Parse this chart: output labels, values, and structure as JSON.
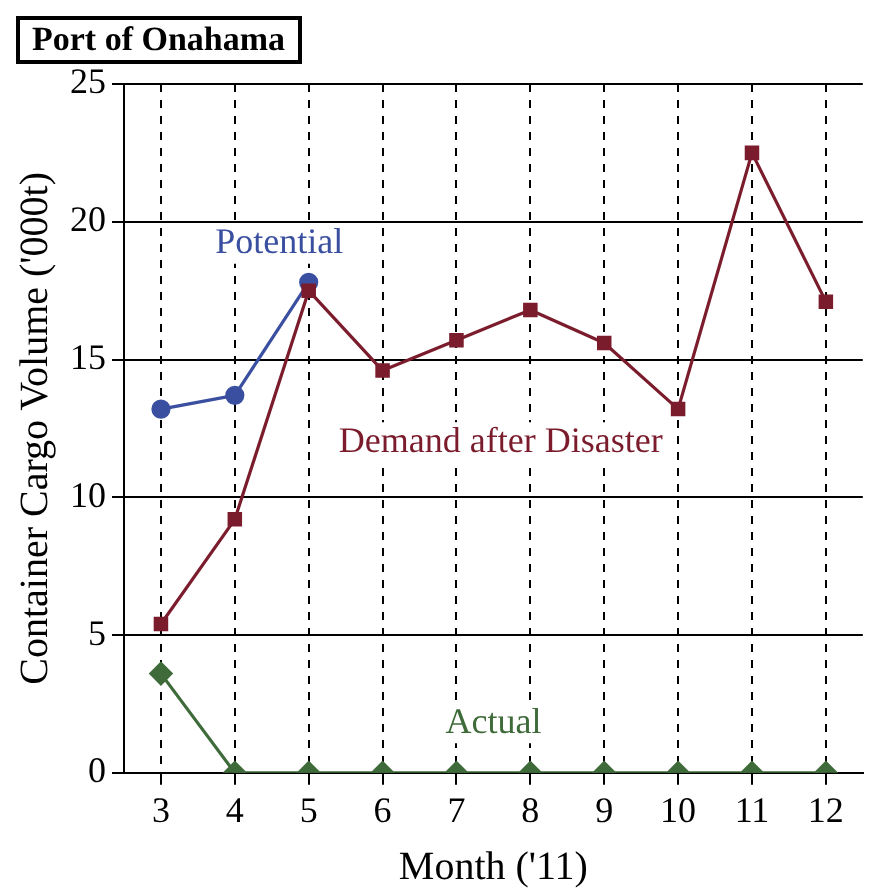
{
  "chart_data": {
    "type": "line",
    "title": "Port of Onahama",
    "xlabel": "Month ('11)",
    "ylabel": "Container Cargo Volume ('000t)",
    "x": [
      3,
      4,
      5,
      6,
      7,
      8,
      9,
      10,
      11,
      12
    ],
    "xlim": [
      2.5,
      12.5
    ],
    "xticks": [
      3,
      4,
      5,
      6,
      7,
      8,
      9,
      10,
      11,
      12
    ],
    "ylim": [
      0,
      25
    ],
    "yticks": [
      0,
      5,
      10,
      15,
      20,
      25
    ],
    "grid": true,
    "legend": false,
    "line_style": "solid",
    "series": [
      {
        "name": "Potential",
        "color": "#3a4fa0",
        "marker": "circle",
        "values": [
          13.2,
          13.7,
          17.8,
          null,
          null,
          null,
          null,
          null,
          null,
          null
        ]
      },
      {
        "name": "Demand after Disaster",
        "color": "#7b1c2c",
        "marker": "square",
        "values": [
          5.4,
          9.2,
          17.5,
          14.6,
          15.7,
          16.8,
          15.6,
          13.2,
          22.5,
          17.1
        ]
      },
      {
        "name": "Actual",
        "color": "#3f6b3a",
        "marker": "diamond",
        "values": [
          3.6,
          0,
          0,
          0,
          0,
          0,
          0,
          0,
          0,
          0
        ]
      }
    ]
  }
}
